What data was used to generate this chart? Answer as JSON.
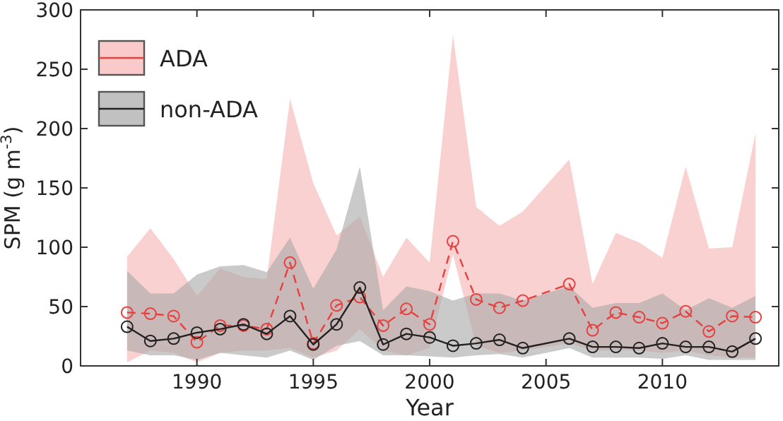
{
  "chart_data": {
    "type": "line",
    "xlabel": "Year",
    "ylabel": "SPM (g m$^{-3}$)",
    "xlim": [
      1985,
      2015
    ],
    "xticks": [
      1990,
      1995,
      2000,
      2005,
      2010
    ],
    "ylim": [
      0,
      300
    ],
    "yticks": [
      0,
      50,
      100,
      150,
      200,
      250,
      300
    ],
    "grid": false,
    "legend": "top left",
    "marker": "circle",
    "series": [
      {
        "name": "ADA",
        "color": "#e8403f",
        "line_style": "dashed",
        "x": [
          1987,
          1988,
          1989,
          1990,
          1991,
          1992,
          1993,
          1994,
          1995,
          1996,
          1997,
          1998,
          1999,
          2000,
          2001,
          2002,
          2003,
          2004,
          2006,
          2007,
          2008,
          2009,
          2010,
          2011,
          2012,
          2013,
          2014
        ],
        "values": [
          45,
          44,
          42,
          20,
          34,
          34,
          31,
          87,
          19,
          51,
          58,
          34,
          48,
          35,
          105,
          56,
          49,
          55,
          69,
          30,
          45,
          41,
          36,
          46,
          29,
          42,
          41
        ],
        "lower": [
          3,
          13,
          11,
          3,
          11,
          13,
          13,
          15,
          7,
          13,
          31,
          13,
          9,
          15,
          94,
          17,
          11,
          13,
          19,
          13,
          13,
          13,
          11,
          13,
          9,
          7,
          7
        ],
        "upper": [
          92,
          116,
          90,
          59,
          82,
          75,
          73,
          225,
          154,
          110,
          126,
          75,
          108,
          87,
          279,
          134,
          118,
          130,
          174,
          69,
          112,
          104,
          91,
          168,
          99,
          100,
          196
        ]
      },
      {
        "name": "non-ADA",
        "color": "#222222",
        "line_style": "solid",
        "x": [
          1987,
          1988,
          1989,
          1990,
          1991,
          1992,
          1993,
          1994,
          1995,
          1996,
          1997,
          1998,
          1999,
          2000,
          2001,
          2002,
          2003,
          2004,
          2006,
          2007,
          2008,
          2009,
          2010,
          2011,
          2012,
          2013,
          2014
        ],
        "values": [
          33,
          21,
          23,
          28,
          31,
          35,
          27,
          42,
          18,
          35,
          66,
          18,
          27,
          24,
          17,
          19,
          22,
          15,
          23,
          16,
          16,
          15,
          19,
          16,
          16,
          12,
          23
        ],
        "lower": [
          13,
          9,
          9,
          5,
          11,
          9,
          7,
          13,
          5,
          17,
          21,
          9,
          9,
          8,
          7,
          9,
          10,
          7,
          15,
          7,
          7,
          7,
          6,
          9,
          5,
          5,
          5
        ],
        "upper": [
          80,
          61,
          61,
          77,
          84,
          85,
          79,
          108,
          65,
          98,
          168,
          47,
          67,
          63,
          55,
          61,
          61,
          55,
          67,
          49,
          53,
          53,
          61,
          47,
          57,
          49,
          59
        ]
      }
    ]
  }
}
